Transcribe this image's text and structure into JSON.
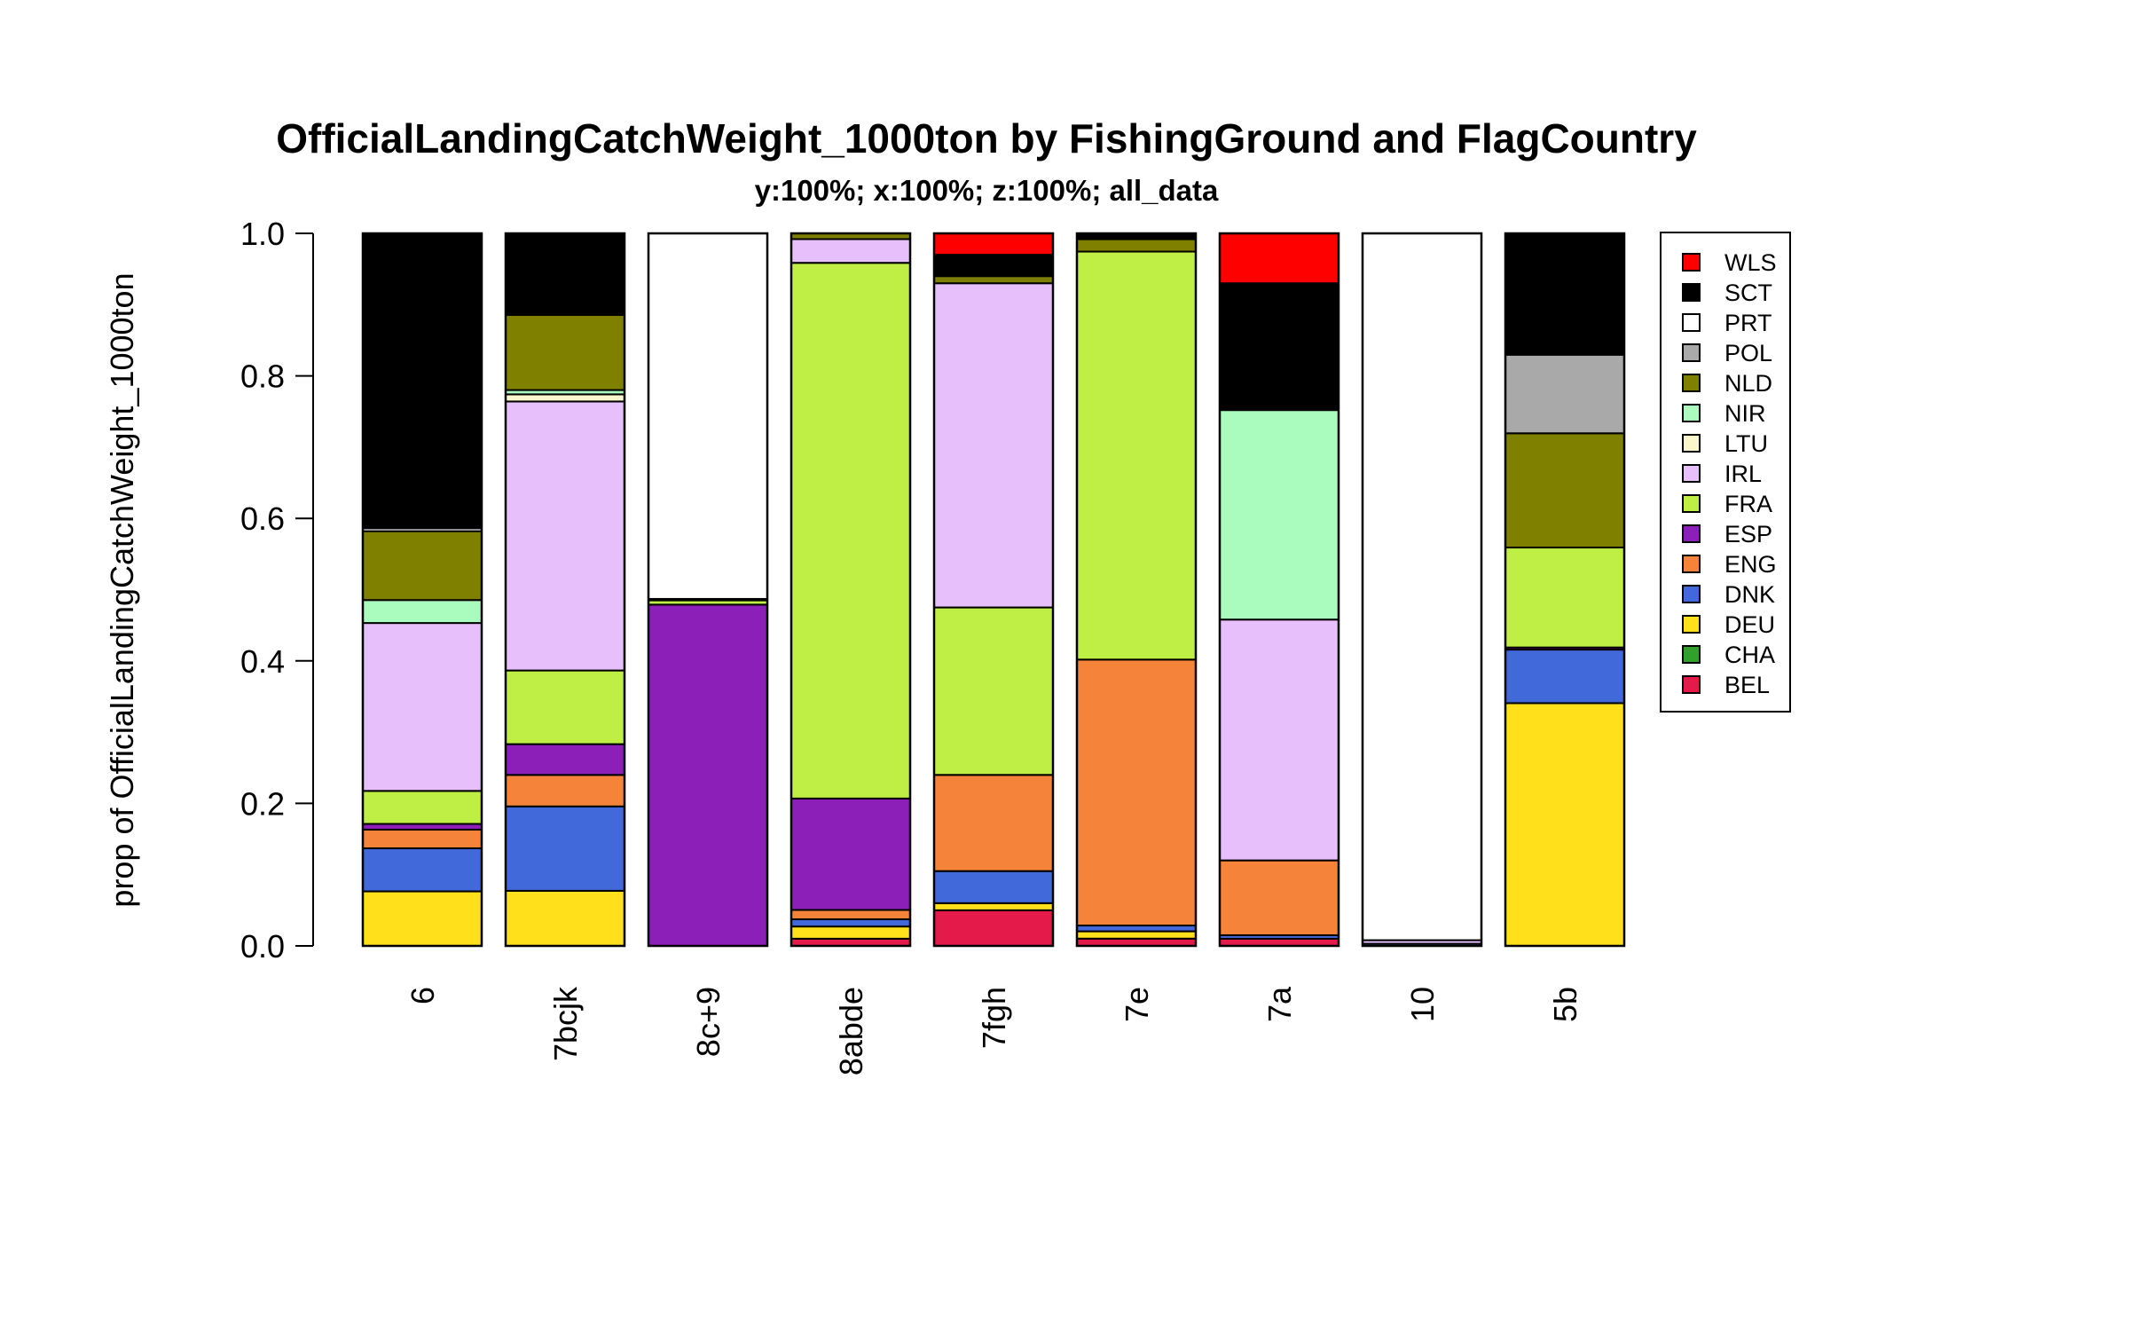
{
  "chart_data": {
    "type": "bar",
    "stacked": true,
    "title": "OfficialLandingCatchWeight_1000ton by FishingGround and FlagCountry",
    "subtitle": "y:100%; x:100%; z:100%; all_data",
    "ylabel": "prop of OfficialLandingCatchWeight_1000ton",
    "ylim": [
      0,
      1
    ],
    "yticks": [
      "0.0",
      "0.2",
      "0.4",
      "0.6",
      "0.8",
      "1.0"
    ],
    "categories": [
      "6",
      "7bcjk",
      "8c+9",
      "8abde",
      "7fgh",
      "7e",
      "7a",
      "10",
      "5b"
    ],
    "legend": {
      "placement": "right"
    },
    "series": [
      {
        "name": "BEL",
        "color": "#E31A4A",
        "values": [
          0.0,
          0.0,
          0.0,
          0.01,
          0.05,
          0.01,
          0.01,
          0.0,
          0.0
        ]
      },
      {
        "name": "CHA",
        "color": "#33A02C",
        "values": [
          0.0,
          0.0,
          0.0,
          0.0,
          0.0,
          0.0,
          0.0,
          0.0,
          0.0
        ]
      },
      {
        "name": "DEU",
        "color": "#FFE01A",
        "values": [
          0.076,
          0.077,
          0.0,
          0.017,
          0.01,
          0.01,
          0.0,
          0.0,
          0.34
        ]
      },
      {
        "name": "DNK",
        "color": "#4169D9",
        "values": [
          0.06,
          0.118,
          0.0,
          0.01,
          0.045,
          0.008,
          0.005,
          0.003,
          0.075
        ]
      },
      {
        "name": "ENG",
        "color": "#F5843A",
        "values": [
          0.026,
          0.044,
          0.0,
          0.013,
          0.135,
          0.365,
          0.105,
          0.0,
          0.0
        ]
      },
      {
        "name": "ESP",
        "color": "#8C1FB8",
        "values": [
          0.008,
          0.043,
          0.478,
          0.155,
          0.0,
          0.0,
          0.0,
          0.0,
          0.003
        ]
      },
      {
        "name": "FRA",
        "color": "#BFEF45",
        "values": [
          0.046,
          0.103,
          0.006,
          0.745,
          0.235,
          0.56,
          0.0,
          0.0,
          0.14
        ]
      },
      {
        "name": "IRL",
        "color": "#E6BFFB",
        "values": [
          0.234,
          0.376,
          0.002,
          0.033,
          0.455,
          0.0,
          0.338,
          0.005,
          0.0
        ]
      },
      {
        "name": "LTU",
        "color": "#FBF7CC",
        "values": [
          0.0,
          0.01,
          0.0,
          0.0,
          0.0,
          0.0,
          0.0,
          0.0,
          0.0
        ]
      },
      {
        "name": "NIR",
        "color": "#AAFBBE",
        "values": [
          0.032,
          0.006,
          0.0,
          0.0,
          0.0,
          0.0,
          0.294,
          0.0,
          0.0
        ]
      },
      {
        "name": "NLD",
        "color": "#808000",
        "values": [
          0.096,
          0.105,
          0.0,
          0.008,
          0.01,
          0.017,
          0.0,
          0.0,
          0.16
        ]
      },
      {
        "name": "POL",
        "color": "#A9A9A9",
        "values": [
          0.0,
          0.0,
          0.0,
          0.0,
          0.0,
          0.0,
          0.0,
          0.0,
          0.11
        ]
      },
      {
        "name": "PRT",
        "color": "#FFFFFF",
        "values": [
          0.004,
          0.0,
          0.512,
          0.0,
          0.0,
          0.0,
          0.0,
          0.992,
          0.0
        ]
      },
      {
        "name": "SCT",
        "color": "#000000",
        "values": [
          0.411,
          0.114,
          0.0,
          0.0,
          0.03,
          0.008,
          0.178,
          0.0,
          0.17
        ]
      },
      {
        "name": "WLS",
        "color": "#FF0000",
        "values": [
          0.0,
          0.0,
          0.0,
          0.0,
          0.03,
          0.0,
          0.07,
          0.0,
          0.0
        ]
      }
    ]
  }
}
